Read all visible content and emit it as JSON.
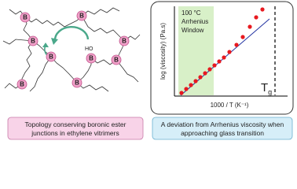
{
  "network": {
    "boron_labels": [
      "B",
      "B",
      "B",
      "B",
      "B",
      "B",
      "B",
      "B",
      "B"
    ],
    "hydroxyl_label": "HO"
  },
  "plot": {
    "window_label": [
      "100 °C",
      "Arrhenius",
      "Window"
    ],
    "y_axis_label": "log (viscosity) (Pa.s)",
    "x_axis_label": "1000 / T (K⁻¹)",
    "tg_label": {
      "main": "T",
      "sub": "g"
    }
  },
  "captions": [
    {
      "lines": [
        "Topology conserving boronic ester",
        "junctions in ethylene vitrimers"
      ]
    },
    {
      "lines": [
        "A deviation from Arrhenius viscosity when",
        "approaching glass transition"
      ]
    }
  ]
}
